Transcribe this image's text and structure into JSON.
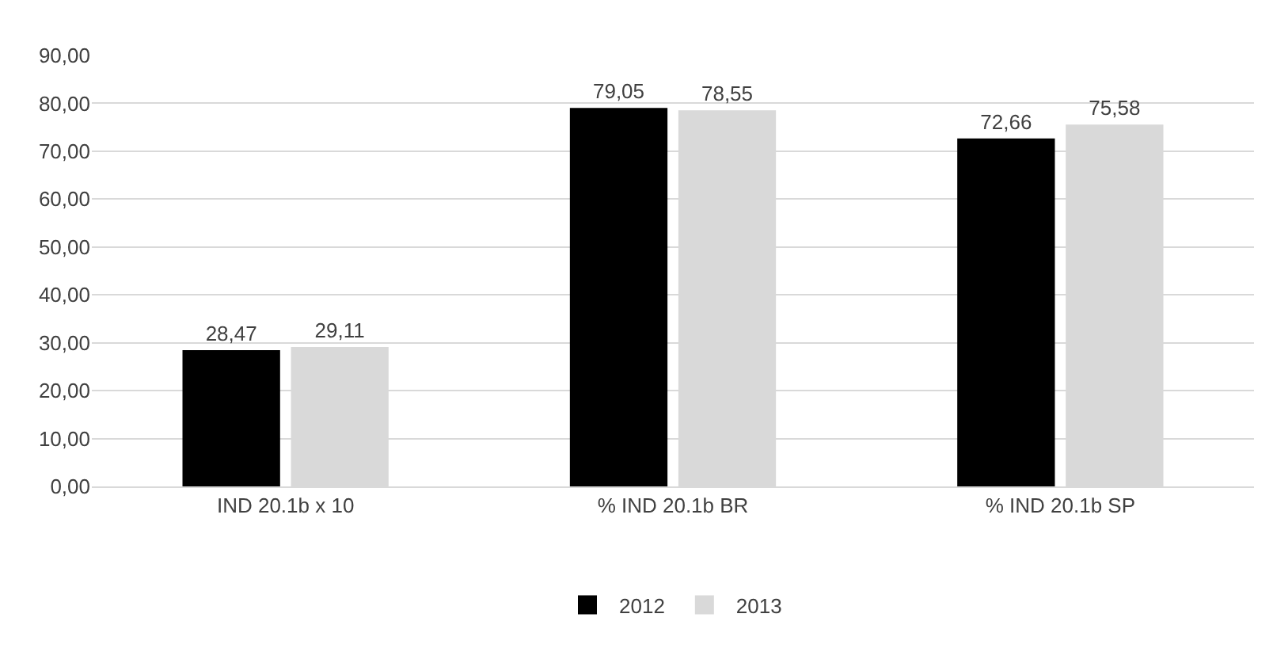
{
  "chart_data": {
    "type": "bar",
    "categories": [
      "IND 20.1b x 10",
      "% IND 20.1b BR",
      "% IND 20.1b SP"
    ],
    "series": [
      {
        "name": "2012",
        "color": "#000000",
        "values": [
          28.47,
          79.05,
          72.66
        ],
        "value_labels": [
          "28,47",
          "79,05",
          "72,66"
        ]
      },
      {
        "name": "2013",
        "color": "#d9d9d9",
        "values": [
          29.11,
          78.55,
          75.58
        ],
        "value_labels": [
          "29,11",
          "78,55",
          "75,58"
        ]
      }
    ],
    "ylim": [
      0,
      90
    ],
    "yticks": [
      {
        "value": 0,
        "label": "0,00"
      },
      {
        "value": 10,
        "label": "10,00"
      },
      {
        "value": 20,
        "label": "20,00"
      },
      {
        "value": 30,
        "label": "30,00"
      },
      {
        "value": 40,
        "label": "40,00"
      },
      {
        "value": 50,
        "label": "50,00"
      },
      {
        "value": 60,
        "label": "60,00"
      },
      {
        "value": 70,
        "label": "70,00"
      },
      {
        "value": 80,
        "label": "80,00"
      },
      {
        "value": 90,
        "label": "90,00"
      }
    ],
    "grid": "y",
    "legend": "bottom"
  }
}
